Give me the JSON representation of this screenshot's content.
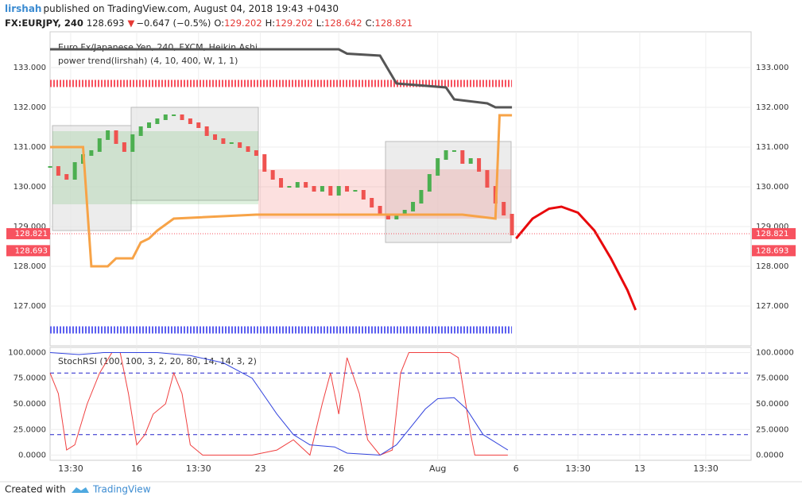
{
  "header": {
    "author": "lirshah",
    "published": "published on TradingView.com, August 04, 2018 19:43 +0430"
  },
  "symbol_line": {
    "symbol": "FX:EURJPY, 240",
    "last": "128.693",
    "arrow": "▼",
    "change": "−0.647 (−0.5%)",
    "o_label": "O:",
    "open": "129.202",
    "h_label": "H:",
    "high": "129.202",
    "l_label": "L:",
    "low": "128.642",
    "c_label": "C:",
    "close": "128.821"
  },
  "chart_data": [
    {
      "type": "candlestick",
      "title": "Euro Fx/Japanese Yen, 240, FXCM, Heikin Ashi",
      "subtitle": "power trend(lirshah) (4, 10, 400, W, 1, 1)",
      "up_color": "#4caf50",
      "down_color": "#ef5350",
      "x": [
        0,
        2,
        4,
        6,
        8,
        10,
        12,
        14,
        16,
        18,
        20,
        22,
        24,
        26,
        28,
        30,
        32,
        34,
        36,
        38,
        40,
        42,
        44,
        46,
        48,
        50,
        52,
        54,
        56,
        58,
        60,
        62,
        64,
        66,
        68,
        70,
        72,
        74,
        76,
        78,
        80,
        82,
        84,
        86,
        88,
        90,
        92,
        94,
        96,
        98,
        100,
        102,
        104,
        106,
        108,
        110,
        112
      ],
      "close": [
        130.5,
        130.3,
        130.2,
        130.6,
        130.8,
        130.9,
        131.2,
        131.4,
        131.1,
        130.9,
        131.3,
        131.5,
        131.6,
        131.7,
        131.8,
        131.8,
        131.7,
        131.6,
        131.5,
        131.3,
        131.2,
        131.1,
        131.1,
        131.0,
        130.9,
        130.8,
        130.4,
        130.2,
        130.0,
        130.0,
        130.1,
        130.0,
        129.9,
        130.0,
        129.8,
        130.0,
        129.9,
        129.9,
        129.7,
        129.5,
        129.3,
        129.2,
        129.3,
        129.4,
        129.6,
        129.9,
        130.3,
        130.7,
        130.9,
        130.9,
        130.6,
        130.7,
        130.4,
        130.0,
        129.6,
        129.3,
        128.8
      ],
      "lines": [
        {
          "color": "#555555",
          "x": [
            0,
            70,
            72,
            80,
            84,
            96,
            98,
            106,
            108,
            112
          ],
          "values": [
            133.46,
            133.46,
            133.35,
            133.3,
            132.6,
            132.5,
            132.2,
            132.1,
            132.0,
            132.0
          ]
        },
        {
          "color": "#f7a347",
          "x": [
            0,
            8,
            10,
            14,
            16,
            20,
            22,
            24,
            26,
            30,
            50,
            100,
            108,
            109,
            112
          ],
          "values": [
            131.0,
            131.0,
            128.0,
            128.0,
            128.2,
            128.2,
            128.6,
            128.7,
            128.9,
            129.2,
            129.3,
            129.3,
            129.2,
            131.8,
            131.8
          ]
        },
        {
          "color": "#e8090c",
          "x": [
            113,
            117,
            121,
            124,
            128,
            132,
            136,
            140,
            142
          ],
          "values": [
            128.7,
            129.2,
            129.45,
            129.5,
            129.35,
            128.9,
            128.2,
            127.4,
            126.9
          ]
        }
      ],
      "levels": [
        {
          "value": 132.6,
          "color": "#f7525f"
        },
        {
          "value": 126.4,
          "color": "#5b5ff0"
        }
      ],
      "price_labels": [
        {
          "value": 128.821,
          "label": "128.821"
        },
        {
          "value": 128.693,
          "label": "128.693"
        }
      ],
      "label_color": "#f7525f",
      "xlim": [
        0,
        170
      ],
      "ylim": [
        126.0,
        133.9
      ],
      "yticks": [
        {
          "value": 127,
          "label": "127.000"
        },
        {
          "value": 128,
          "label": "128.000"
        },
        {
          "value": 129,
          "label": "129.000"
        },
        {
          "value": 130,
          "label": "130.000"
        },
        {
          "value": 131,
          "label": "131.000"
        },
        {
          "value": 132,
          "label": "132.000"
        },
        {
          "value": 133,
          "label": "133.000"
        }
      ]
    },
    {
      "type": "line",
      "title": "StochRSI (100, 100, 3, 2, 20, 80, 14, 14, 3, 2)",
      "series": [
        {
          "color": "#f04040",
          "x": [
            0,
            2,
            4,
            6,
            9,
            12,
            15,
            17,
            19,
            21,
            23,
            25,
            28,
            30,
            32,
            34,
            37,
            45,
            49,
            55,
            59,
            63,
            66,
            68,
            70,
            72,
            75,
            77,
            80,
            83,
            85,
            87,
            97,
            99,
            102,
            103,
            111
          ],
          "values": [
            80,
            60,
            5,
            10,
            50,
            80,
            100,
            100,
            60,
            10,
            20,
            40,
            50,
            80,
            60,
            10,
            0,
            0,
            0,
            5,
            15,
            0,
            50,
            80,
            40,
            95,
            60,
            15,
            0,
            5,
            80,
            100,
            100,
            95,
            20,
            0,
            0
          ]
        },
        {
          "color": "#3344dd",
          "x": [
            0,
            7,
            13,
            26,
            34,
            42,
            49,
            55,
            59,
            63,
            69,
            72,
            80,
            84,
            87,
            91,
            94,
            98,
            101,
            105,
            111
          ],
          "values": [
            100,
            98,
            100,
            100,
            97,
            90,
            75,
            40,
            20,
            10,
            8,
            2,
            0,
            10,
            25,
            45,
            55,
            56,
            45,
            20,
            5
          ]
        }
      ],
      "bands": [
        80,
        20
      ],
      "band_color": "#2222cc",
      "xlim": [
        0,
        170
      ],
      "ylim": [
        -5,
        105
      ],
      "yticks": [
        {
          "value": 0,
          "label": "0.0000"
        },
        {
          "value": 25,
          "label": "25.0000"
        },
        {
          "value": 50,
          "label": "50.0000"
        },
        {
          "value": 75,
          "label": "75.0000"
        },
        {
          "value": 100,
          "label": "100.0000"
        }
      ],
      "xticks": [
        {
          "value": 5,
          "label": "13:30"
        },
        {
          "value": 21,
          "label": "16"
        },
        {
          "value": 36,
          "label": "13:30"
        },
        {
          "value": 51,
          "label": "23"
        },
        {
          "value": 70,
          "label": "26"
        },
        {
          "value": 94,
          "label": "Aug"
        },
        {
          "value": 113,
          "label": "6"
        },
        {
          "value": 128,
          "label": "13:30"
        },
        {
          "value": 143,
          "label": "13"
        },
        {
          "value": 159,
          "label": "13:30"
        }
      ]
    }
  ],
  "footer": {
    "created": "Created with",
    "brand": "TradingView"
  }
}
